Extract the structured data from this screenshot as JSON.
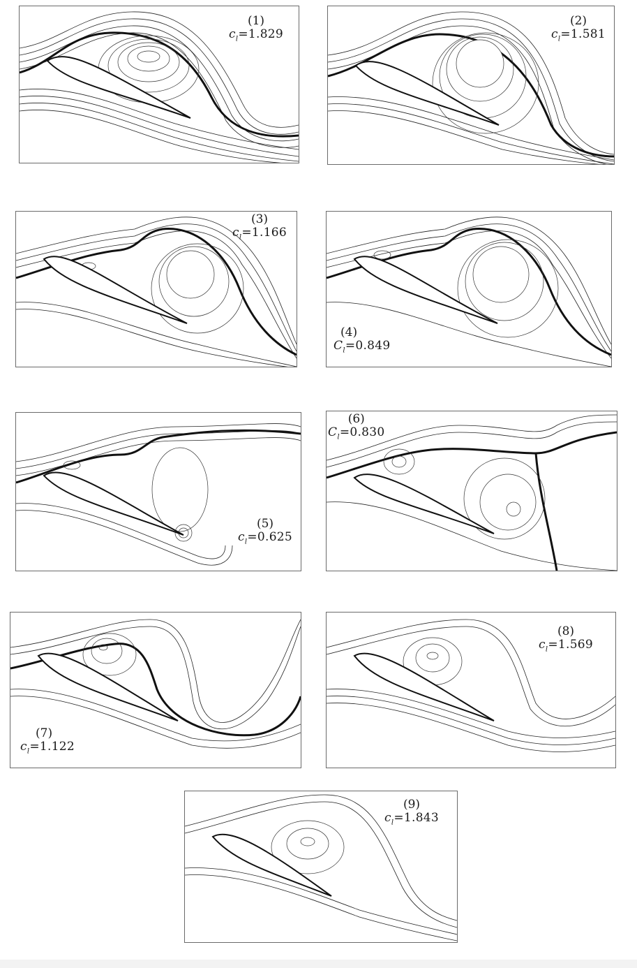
{
  "panels": [
    {
      "number": "(1)",
      "coef_symbol": "c",
      "coef_subscript": "l",
      "coef_value": "=1.829"
    },
    {
      "number": "(2)",
      "coef_symbol": "c",
      "coef_subscript": "l",
      "coef_value": "=1.581"
    },
    {
      "number": "(3)",
      "coef_symbol": "c",
      "coef_subscript": "l",
      "coef_value": "=1.166"
    },
    {
      "number": "(4)",
      "coef_symbol": "C",
      "coef_subscript": "l",
      "coef_value": "=0.849"
    },
    {
      "number": "(5)",
      "coef_symbol": "c",
      "coef_subscript": "l",
      "coef_value": "=0.625"
    },
    {
      "number": "(6)",
      "coef_symbol": "C",
      "coef_subscript": "l",
      "coef_value": "=0.830"
    },
    {
      "number": "(7)",
      "coef_symbol": "c",
      "coef_subscript": "l",
      "coef_value": "=1.122"
    },
    {
      "number": "(8)",
      "coef_symbol": "c",
      "coef_subscript": "l",
      "coef_value": "=1.569"
    },
    {
      "number": "(9)",
      "coef_symbol": "c",
      "coef_subscript": "l",
      "coef_value": "=1.843"
    }
  ]
}
